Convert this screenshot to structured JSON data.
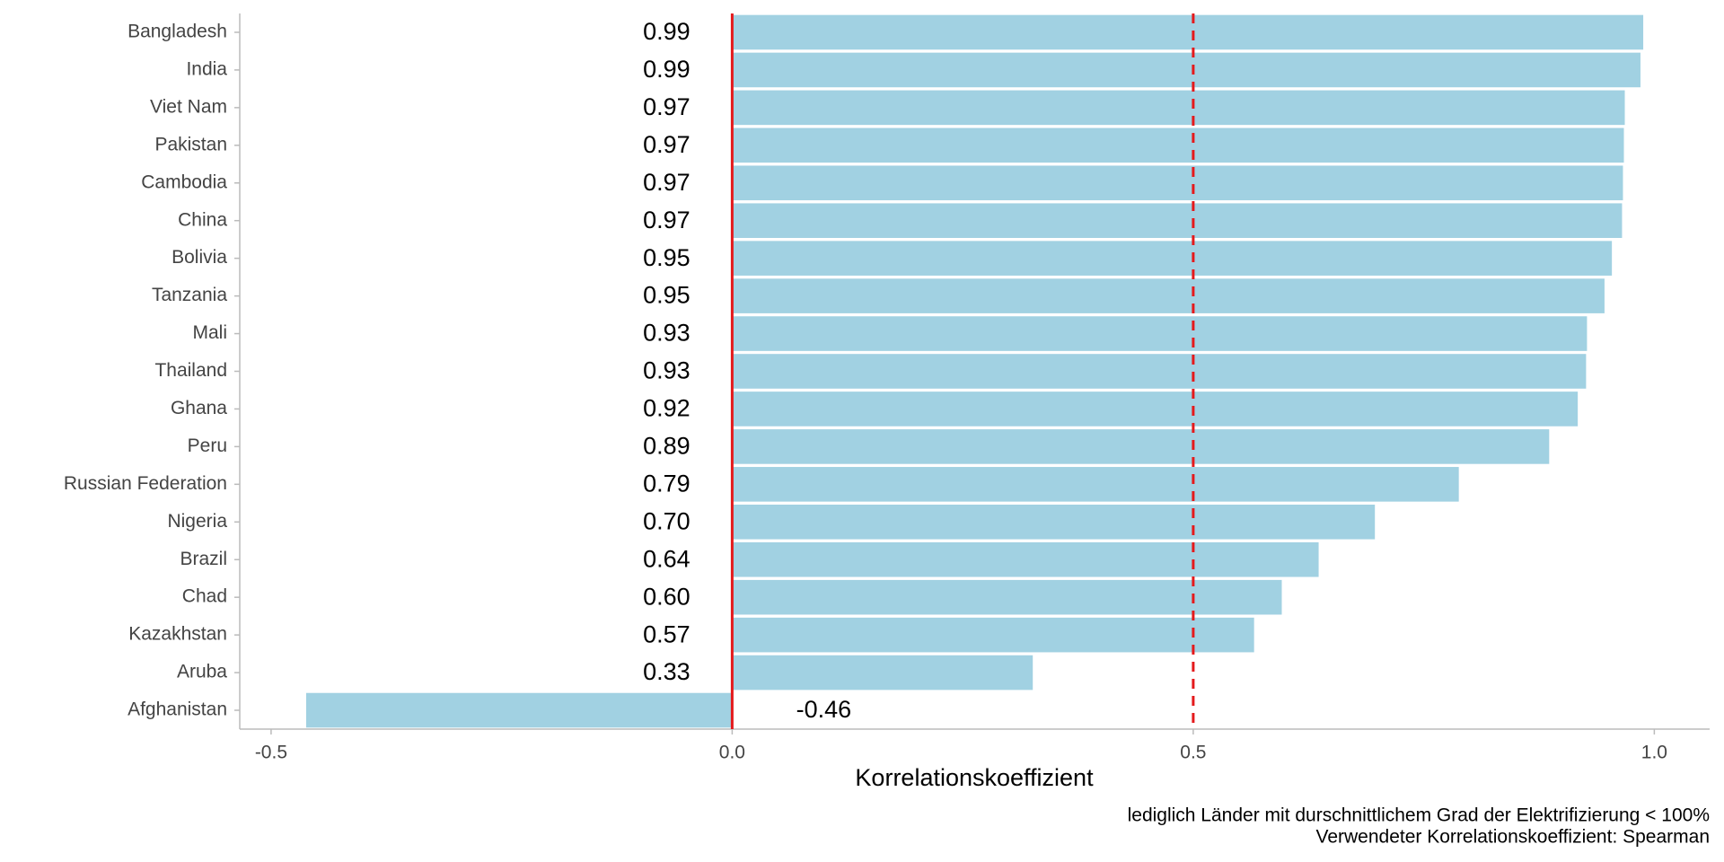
{
  "chart_data": {
    "type": "barh",
    "xlabel": "Korrelationskoeffizient",
    "caption": [
      "lediglich Länder mit durschnittlichem Grad der Elektrifizierung < 100%",
      "Verwendeter Korrelationskoeffizient: Spearman"
    ],
    "categories": [
      "Bangladesh",
      "India",
      "Viet Nam",
      "Pakistan",
      "Cambodia",
      "China",
      "Bolivia",
      "Tanzania",
      "Mali",
      "Thailand",
      "Ghana",
      "Peru",
      "Russian Federation",
      "Nigeria",
      "Brazil",
      "Chad",
      "Kazakhstan",
      "Aruba",
      "Afghanistan"
    ],
    "values": [
      0.988,
      0.985,
      0.968,
      0.967,
      0.966,
      0.965,
      0.954,
      0.946,
      0.927,
      0.926,
      0.917,
      0.886,
      0.788,
      0.697,
      0.636,
      0.596,
      0.566,
      0.326,
      -0.462
    ],
    "value_labels": [
      "0.99",
      "0.99",
      "0.97",
      "0.97",
      "0.97",
      "0.97",
      "0.95",
      "0.95",
      "0.93",
      "0.93",
      "0.92",
      "0.89",
      "0.79",
      "0.70",
      "0.64",
      "0.60",
      "0.57",
      "0.33",
      "-0.46"
    ],
    "color": "#a1d1e2",
    "xlim": [
      -0.534,
      1.06
    ],
    "xticks": [
      -0.5,
      {
        "value": 0,
        "label": "0.0"
      },
      0.5,
      {
        "value": 1,
        "label": "1.0"
      }
    ],
    "reference_lines": [
      {
        "value": 0,
        "style": "solid",
        "color": "#e41a1c"
      },
      {
        "value": 0.5,
        "style": "dashed",
        "color": "#e41a1c"
      }
    ]
  }
}
